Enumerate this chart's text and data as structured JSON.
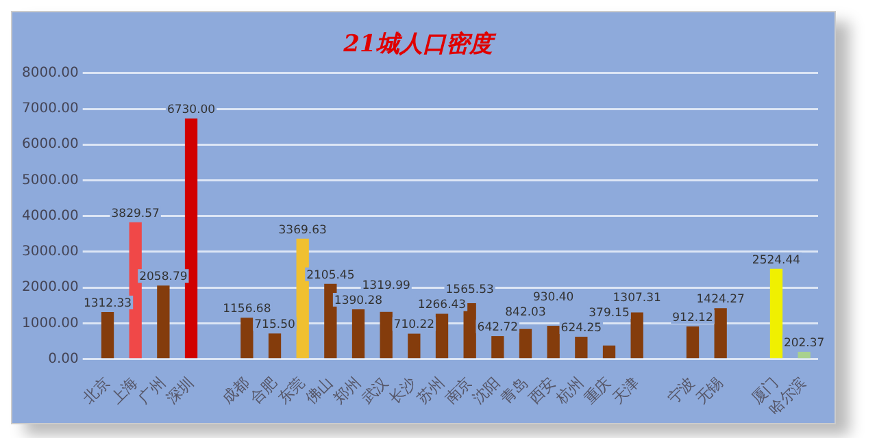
{
  "chart_data": {
    "type": "bar",
    "title": "21城人口密度",
    "categories": [
      "北京",
      "上海",
      "广州",
      "深圳",
      null,
      "成都",
      "合肥",
      "东莞",
      "佛山",
      "郑州",
      "武汉",
      "长沙",
      "苏州",
      "南京",
      "沈阳",
      "青岛",
      "西安",
      "杭州",
      "重庆",
      "天津",
      null,
      "宁波",
      "无锡",
      null,
      "厦门",
      "哈尔滨"
    ],
    "values": [
      1312.33,
      3829.57,
      2058.79,
      6730,
      null,
      1156.68,
      715.5,
      3369.63,
      2105.45,
      1390.28,
      1319.99,
      710.22,
      1266.43,
      1565.53,
      642.72,
      842.03,
      930.4,
      624.25,
      379.15,
      1307.31,
      null,
      912.12,
      1424.27,
      null,
      2524.44,
      202.37
    ],
    "value_labels": [
      "1312.33",
      "3829.57",
      "2058.79",
      "6730.00",
      null,
      "1156.68",
      "715.50",
      "3369.63",
      "2105.45",
      "1390.28",
      "1319.99",
      "710.22",
      "1266.43",
      "1565.53",
      "642.72",
      "842.03",
      "930.40",
      "624.25",
      "379.15",
      "1307.31",
      null,
      "912.12",
      "1424.27",
      null,
      "2524.44",
      "202.37"
    ],
    "colors": [
      "#843c0c",
      "#f04848",
      "#843c0c",
      "#d00000",
      null,
      "#843c0c",
      "#843c0c",
      "#f0c030",
      "#843c0c",
      "#843c0c",
      "#843c0c",
      "#843c0c",
      "#843c0c",
      "#843c0c",
      "#843c0c",
      "#843c0c",
      "#843c0c",
      "#843c0c",
      "#843c0c",
      "#843c0c",
      null,
      "#843c0c",
      "#843c0c",
      null,
      "#f0f000",
      "#a9d18e"
    ],
    "ylim": [
      0,
      8000
    ],
    "yticks": [
      {
        "value": 0,
        "label": "0.00"
      },
      {
        "value": 1000,
        "label": "1000.00"
      },
      {
        "value": 2000,
        "label": "2000.00"
      },
      {
        "value": 3000,
        "label": "3000.00"
      },
      {
        "value": 4000,
        "label": "4000.00"
      },
      {
        "value": 5000,
        "label": "5000.00"
      },
      {
        "value": 6000,
        "label": "6000.00"
      },
      {
        "value": 7000,
        "label": "7000.00"
      },
      {
        "value": 8000,
        "label": "8000.00"
      }
    ],
    "grid": "y"
  }
}
